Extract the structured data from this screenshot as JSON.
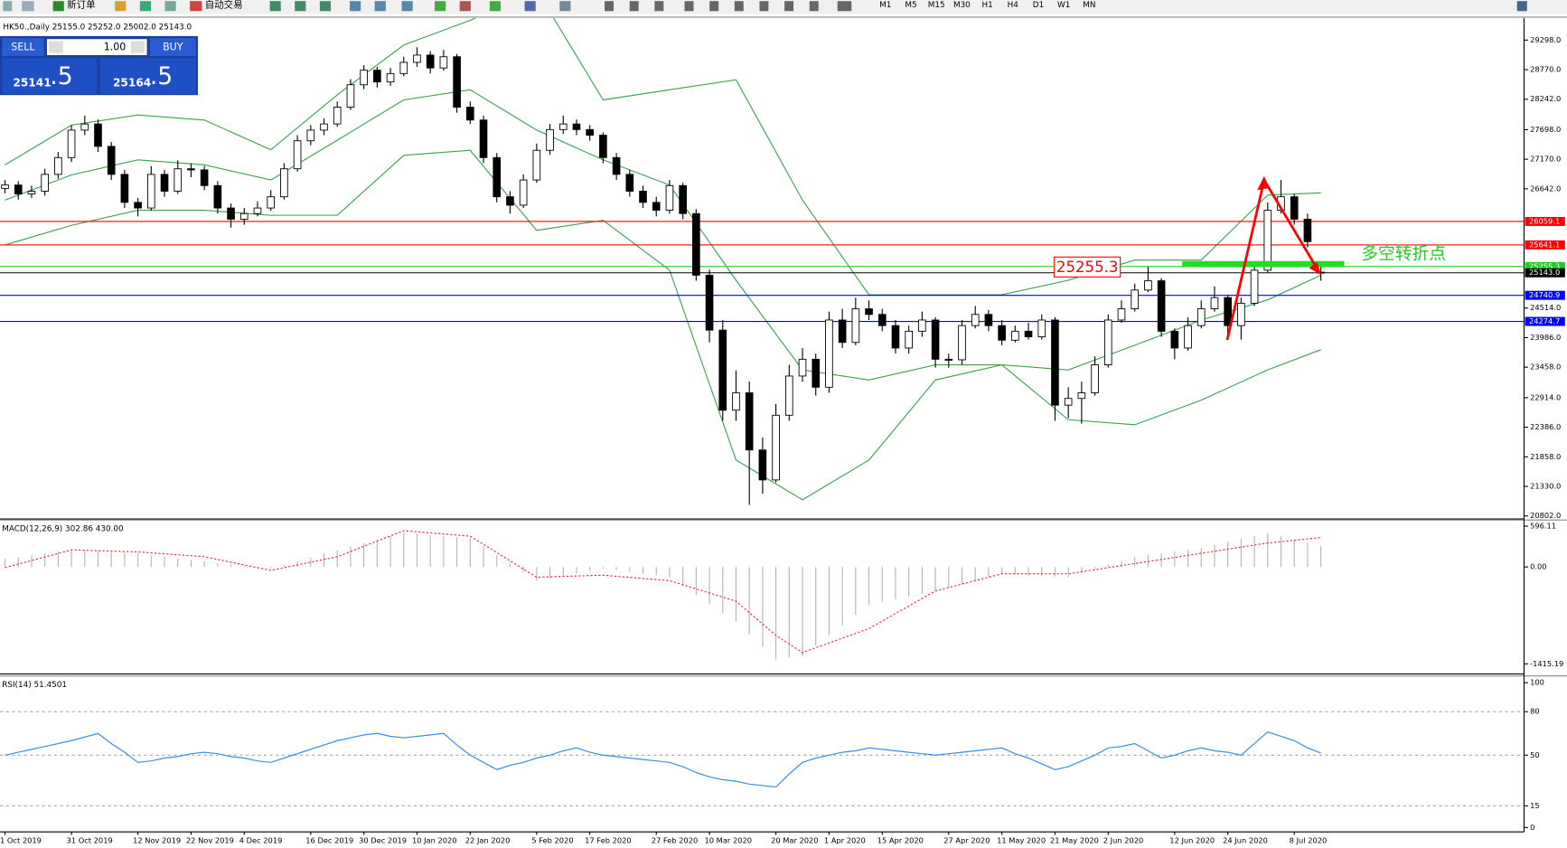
{
  "toolbar": {
    "new_order": "新订单",
    "auto_trading": "自动交易",
    "timeframes": [
      "M1",
      "M5",
      "M15",
      "M30",
      "H1",
      "H4",
      "D1",
      "W1",
      "MN"
    ]
  },
  "trade_panel": {
    "sell": "SELL",
    "lot": "1.00",
    "buy": "BUY",
    "sell_price_main": "25141",
    "sell_price_frac": ".5",
    "buy_price_main": "25164",
    "buy_price_frac": ".5"
  },
  "chart_data": [
    {
      "type": "candlestick",
      "title": "HK50.,Daily 25155.0 25252.0 25002.0 25143.0",
      "annotation": "多空转折点",
      "ylim": [
        20766,
        29690
      ],
      "yticks": [
        {
          "value": 29298,
          "label": "29298.0"
        },
        {
          "value": 28770,
          "label": "28770.0"
        },
        {
          "value": 28242,
          "label": "28242.0"
        },
        {
          "value": 27698,
          "label": "27698.0"
        },
        {
          "value": 27170,
          "label": "27170.0"
        },
        {
          "value": 26642,
          "label": "26642.0"
        },
        {
          "value": 24514,
          "label": "24514.0"
        },
        {
          "value": 23986,
          "label": "23986.0"
        },
        {
          "value": 23458,
          "label": "23458.0"
        },
        {
          "value": 22914,
          "label": "22914.0"
        },
        {
          "value": 22386,
          "label": "22386.0"
        },
        {
          "value": 21858,
          "label": "21858.0"
        },
        {
          "value": 21330,
          "label": "21330.0"
        },
        {
          "value": 20802,
          "label": "20802.0"
        }
      ],
      "categories": [
        "1 Oct 2019",
        null,
        null,
        null,
        null,
        "31 Oct 2019",
        null,
        null,
        null,
        null,
        "12 Nov 2019",
        null,
        null,
        null,
        "22 Nov 2019",
        null,
        null,
        null,
        "4 Dec 2019",
        null,
        null,
        null,
        null,
        "16 Dec 2019",
        null,
        null,
        null,
        "30 Dec 2019",
        null,
        null,
        null,
        "10 Jan 2020",
        null,
        null,
        null,
        "22 Jan 2020",
        null,
        null,
        null,
        null,
        "5 Feb 2020",
        null,
        null,
        null,
        "17 Feb 2020",
        null,
        null,
        null,
        null,
        "27 Feb 2020",
        null,
        null,
        null,
        "10 Mar 2020",
        null,
        null,
        null,
        null,
        "20 Mar 2020",
        null,
        null,
        null,
        "1 Apr 2020",
        null,
        null,
        null,
        "15 Apr 2020",
        null,
        null,
        null,
        null,
        "27 Apr 2020",
        null,
        null,
        null,
        "11 May 2020",
        null,
        null,
        null,
        "21 May 2020",
        null,
        null,
        null,
        "2 Jun 2020",
        null,
        null,
        null,
        null,
        "12 Jun 2020",
        null,
        null,
        null,
        "24 Jun 2020",
        null,
        null,
        null,
        null,
        "8 Jul 2020",
        null,
        null
      ],
      "ohlc": [
        [
          26650,
          26800,
          26560,
          26710
        ],
        [
          26710,
          26780,
          26450,
          26550
        ],
        [
          26550,
          26700,
          26480,
          26600
        ],
        [
          26600,
          27000,
          26520,
          26900
        ],
        [
          26900,
          27300,
          26820,
          27200
        ],
        [
          27200,
          27780,
          27120,
          27690
        ],
        [
          27690,
          27950,
          27600,
          27800
        ],
        [
          27800,
          27880,
          27300,
          27400
        ],
        [
          27400,
          27480,
          26800,
          26900
        ],
        [
          26900,
          26980,
          26300,
          26400
        ],
        [
          26400,
          26480,
          26150,
          26300
        ],
        [
          26300,
          27050,
          26250,
          26900
        ],
        [
          26900,
          26980,
          26500,
          26600
        ],
        [
          26600,
          27150,
          26550,
          27000
        ],
        [
          27000,
          27100,
          26850,
          26980
        ],
        [
          26980,
          27050,
          26620,
          26700
        ],
        [
          26700,
          26780,
          26200,
          26300
        ],
        [
          26300,
          26380,
          25950,
          26100
        ],
        [
          26100,
          26300,
          26000,
          26200
        ],
        [
          26200,
          26420,
          26150,
          26300
        ],
        [
          26300,
          26620,
          26250,
          26500
        ],
        [
          26500,
          27100,
          26450,
          27000
        ],
        [
          27000,
          27600,
          26950,
          27500
        ],
        [
          27500,
          27780,
          27420,
          27690
        ],
        [
          27690,
          27900,
          27600,
          27800
        ],
        [
          27800,
          28200,
          27750,
          28100
        ],
        [
          28100,
          28600,
          28050,
          28500
        ],
        [
          28500,
          28850,
          28420,
          28760
        ],
        [
          28760,
          28820,
          28450,
          28550
        ],
        [
          28550,
          28800,
          28480,
          28700
        ],
        [
          28700,
          29000,
          28650,
          28900
        ],
        [
          28900,
          29170,
          28820,
          29030
        ],
        [
          29030,
          29100,
          28700,
          28800
        ],
        [
          28800,
          29120,
          28750,
          29000
        ],
        [
          29000,
          29050,
          28000,
          28100
        ],
        [
          28100,
          28200,
          27800,
          27870
        ],
        [
          27870,
          27950,
          27100,
          27200
        ],
        [
          27200,
          27280,
          26400,
          26500
        ],
        [
          26500,
          26600,
          26200,
          26350
        ],
        [
          26350,
          26900,
          26300,
          26800
        ],
        [
          26800,
          27450,
          26750,
          27330
        ],
        [
          27330,
          27800,
          27250,
          27700
        ],
        [
          27700,
          27950,
          27620,
          27800
        ],
        [
          27800,
          27880,
          27600,
          27700
        ],
        [
          27700,
          27780,
          27500,
          27600
        ],
        [
          27600,
          27650,
          27100,
          27200
        ],
        [
          27200,
          27280,
          26800,
          26900
        ],
        [
          26900,
          26980,
          26500,
          26600
        ],
        [
          26600,
          26700,
          26300,
          26400
        ],
        [
          26400,
          26500,
          26150,
          26260
        ],
        [
          26260,
          26800,
          26200,
          26700
        ],
        [
          26700,
          26750,
          26100,
          26200
        ],
        [
          26200,
          26280,
          25000,
          25100
        ],
        [
          25100,
          25200,
          23900,
          24120
        ],
        [
          24120,
          24300,
          22500,
          22690
        ],
        [
          22690,
          23400,
          22500,
          23000
        ],
        [
          23000,
          23200,
          21000,
          21980
        ],
        [
          21980,
          22200,
          21200,
          21445
        ],
        [
          21445,
          22800,
          21400,
          22600
        ],
        [
          22600,
          23500,
          22500,
          23300
        ],
        [
          23300,
          23800,
          23200,
          23600
        ],
        [
          23600,
          23700,
          22950,
          23100
        ],
        [
          23100,
          24450,
          23000,
          24300
        ],
        [
          24300,
          24500,
          23800,
          23900
        ],
        [
          23900,
          24700,
          23850,
          24500
        ],
        [
          24500,
          24650,
          24300,
          24400
        ],
        [
          24400,
          24500,
          24100,
          24200
        ],
        [
          24200,
          24300,
          23700,
          23800
        ],
        [
          23800,
          24200,
          23700,
          24100
        ],
        [
          24100,
          24450,
          24000,
          24300
        ],
        [
          24300,
          24350,
          23450,
          23600
        ],
        [
          23600,
          23700,
          23450,
          23590
        ],
        [
          23590,
          24300,
          23500,
          24200
        ],
        [
          24200,
          24550,
          24150,
          24400
        ],
        [
          24400,
          24480,
          24100,
          24200
        ],
        [
          24200,
          24300,
          23850,
          23940
        ],
        [
          23940,
          24200,
          23900,
          24100
        ],
        [
          24100,
          24250,
          23950,
          24000
        ],
        [
          24000,
          24400,
          23950,
          24300
        ],
        [
          24300,
          24350,
          22500,
          22780
        ],
        [
          22780,
          23100,
          22550,
          22900
        ],
        [
          22900,
          23200,
          22450,
          23000
        ],
        [
          23000,
          23650,
          22950,
          23500
        ],
        [
          23500,
          24400,
          23450,
          24300
        ],
        [
          24300,
          24650,
          24250,
          24500
        ],
        [
          24500,
          24950,
          24450,
          24835
        ],
        [
          24835,
          25250,
          24800,
          25000
        ],
        [
          25000,
          25050,
          24000,
          24100
        ],
        [
          24100,
          24150,
          23600,
          23800
        ],
        [
          23800,
          24350,
          23750,
          24200
        ],
        [
          24200,
          24650,
          24150,
          24500
        ],
        [
          24500,
          24900,
          24450,
          24700
        ],
        [
          24700,
          24750,
          24050,
          24200
        ],
        [
          24200,
          24700,
          23950,
          24600
        ],
        [
          24600,
          25350,
          24550,
          25190
        ],
        [
          25190,
          26400,
          25150,
          26260
        ],
        [
          26260,
          26800,
          26200,
          26500
        ],
        [
          26500,
          26550,
          26000,
          26100
        ],
        [
          26100,
          26200,
          25600,
          25700
        ],
        [
          25155,
          25252,
          25002,
          25143
        ]
      ],
      "bands": {
        "color": "#3aa04a",
        "x": [
          0,
          5,
          10,
          15,
          20,
          25,
          30,
          35,
          40,
          45,
          50,
          55,
          60,
          65,
          70,
          75,
          80,
          85,
          90,
          95,
          99
        ],
        "upper": [
          27070,
          27780,
          27960,
          27870,
          27340,
          28320,
          29210,
          29650,
          30190,
          28230,
          28410,
          28590,
          26440,
          24750,
          24750,
          24750,
          25010,
          25370,
          25370,
          26530,
          26570
        ],
        "middle": [
          26440,
          26890,
          27160,
          27070,
          26800,
          27510,
          28230,
          28410,
          27690,
          27160,
          26710,
          25010,
          23410,
          23230,
          23500,
          23500,
          23410,
          23850,
          24300,
          24660,
          25100
        ],
        "lower": [
          25640,
          25990,
          26260,
          26260,
          26170,
          26170,
          27240,
          27330,
          25900,
          26080,
          25190,
          21800,
          21090,
          21800,
          23230,
          23500,
          22520,
          22430,
          22870,
          23410,
          23770
        ]
      },
      "levels": [
        {
          "value": 26059.1,
          "label": "26059.1",
          "color": "#ff0000"
        },
        {
          "value": 25641.1,
          "label": "25641.1",
          "color": "#ff0000"
        },
        {
          "value": 25255.3,
          "label": "25255.3",
          "color": "#22cc22"
        },
        {
          "value": 25143.0,
          "label": "25143.0",
          "color": "#000000"
        },
        {
          "value": 24740.9,
          "label": "24740.9",
          "color": "#0000ff"
        },
        {
          "value": 24274.7,
          "label": "24274.7",
          "color": "#0000ff"
        }
      ]
    },
    {
      "type": "macd",
      "title": "MACD(12,26,9) 302.86 430.00",
      "ylim": [
        -1548,
        672
      ],
      "yticks": [
        596.11,
        {
          "value": 0,
          "label": "0.00"
        },
        -1415.19
      ],
      "series": [
        {
          "name": "MACD",
          "color": "#b4b4b4",
          "values": [
            120,
            146,
            172,
            198,
            224,
            250,
            240,
            230,
            220,
            210,
            200,
            176,
            152,
            128,
            104,
            80,
            58,
            36,
            14,
            -8,
            -30,
            26,
            82,
            138,
            194,
            250,
            300,
            350,
            400,
            450,
            500,
            484,
            468,
            452,
            436,
            420,
            296,
            172,
            48,
            -76,
            -200,
            -164,
            -128,
            -92,
            -56,
            -20,
            -46,
            -72,
            -98,
            -124,
            -150,
            -280,
            -410,
            -540,
            -670,
            -800,
            -983,
            -1166,
            -1350,
            -1325,
            -1300,
            -1150,
            -1000,
            -850,
            -700,
            -550,
            -510,
            -470,
            -430,
            -390,
            -350,
            -300,
            -250,
            -200,
            -150,
            -100,
            -110,
            -120,
            -130,
            -140,
            -150,
            -90,
            -30,
            30,
            90,
            150,
            176,
            202,
            228,
            254,
            280,
            324,
            368,
            412,
            456,
            500,
            450,
            400,
            350,
            302.86
          ]
        },
        {
          "name": "Signal",
          "color": "#e8262a",
          "values": [
            -10,
            42,
            94,
            146,
            198,
            250,
            244,
            238,
            232,
            226,
            220,
            206,
            192,
            178,
            164,
            150,
            110,
            70,
            30,
            -10,
            -50,
            -10,
            30,
            70,
            110,
            150,
            226,
            302,
            378,
            454,
            530,
            514,
            498,
            482,
            466,
            450,
            330,
            210,
            90,
            -30,
            -150,
            -144,
            -138,
            -132,
            -126,
            -120,
            -136,
            -152,
            -168,
            -184,
            -200,
            -260,
            -320,
            -380,
            -440,
            -500,
            -667,
            -833,
            -1000,
            -1125,
            -1250,
            -1180,
            -1110,
            -1040,
            -970,
            -900,
            -790,
            -680,
            -570,
            -460,
            -350,
            -300,
            -250,
            -200,
            -150,
            -100,
            -100,
            -100,
            -100,
            -100,
            -100,
            -70,
            -40,
            -10,
            20,
            50,
            80,
            110,
            140,
            170,
            200,
            230,
            260,
            290,
            320,
            350,
            370,
            390,
            410,
            430
          ]
        }
      ]
    },
    {
      "type": "line",
      "title": "RSI(14) 51.4501",
      "ylim": [
        -3,
        104
      ],
      "yticks": [
        100,
        80,
        50,
        15,
        0
      ],
      "levels": [
        80,
        50,
        15
      ],
      "color": "#3d8fe0",
      "values": [
        50,
        52,
        54,
        56,
        58,
        60,
        62.5,
        65,
        58,
        52,
        45,
        46,
        48,
        49,
        51,
        52,
        51,
        49,
        48,
        46,
        45,
        48,
        51,
        54,
        57,
        60,
        62,
        64,
        65,
        63,
        62,
        63,
        64,
        65,
        57,
        50,
        45,
        40,
        43,
        45,
        48,
        50,
        53,
        55,
        52,
        50,
        49,
        48,
        47,
        46,
        45,
        42,
        38,
        35,
        33,
        32,
        30,
        29,
        28,
        37,
        45,
        48,
        50,
        52,
        53,
        55,
        54,
        53,
        52,
        51,
        50,
        51,
        52,
        53,
        54,
        55,
        51,
        48,
        44,
        40,
        42,
        46,
        50,
        55,
        56,
        58,
        53,
        48,
        50,
        53,
        55,
        53,
        52,
        50,
        58,
        66,
        63,
        60,
        55,
        51.4501
      ]
    }
  ]
}
